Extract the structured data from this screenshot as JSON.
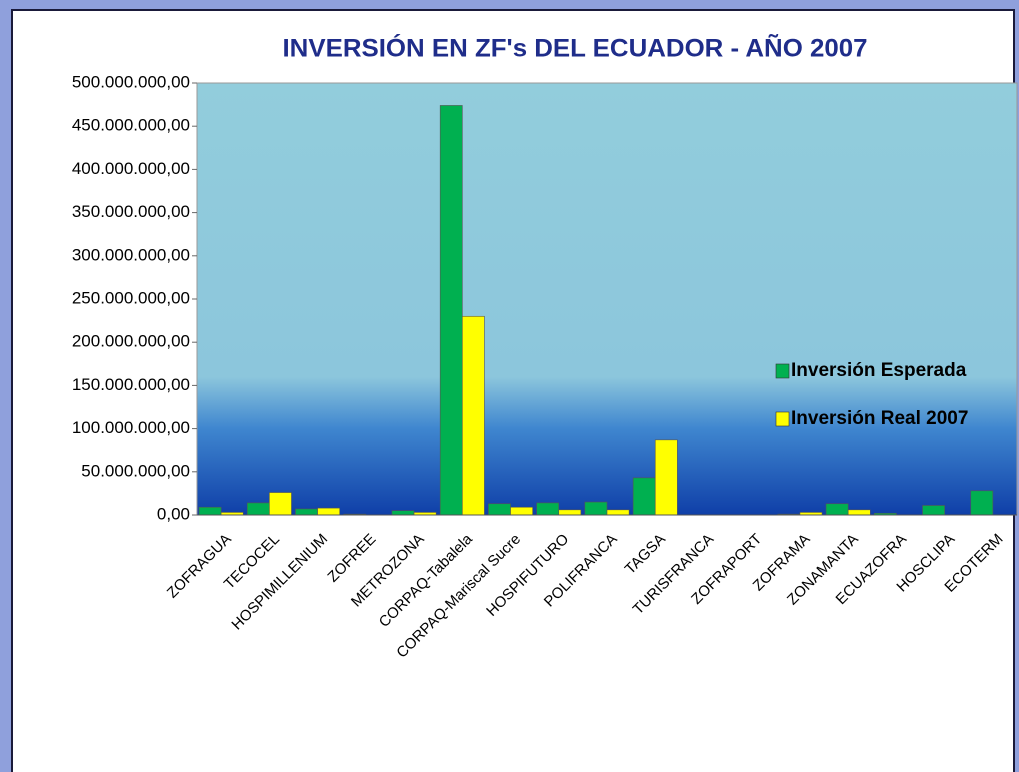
{
  "chart_data": {
    "type": "bar",
    "title": "INVERSIÓN EN ZF's DEL ECUADOR - AÑO 2007",
    "categories": [
      "ZOFRAGUA",
      "TECOCEL",
      "HOSPIMILLENIUM",
      "ZOFREE",
      "METROZONA",
      "CORPAQ-Tabalela",
      "CORPAQ-Mariscal Sucre",
      "HOSPIFUTURO",
      "POLIFRANCA",
      "TAGSA",
      "TURISFRANCA",
      "ZOFRAPORT",
      "ZOFRAMA",
      "ZONAMANTA",
      "ECUAZOFRA",
      "HOSCLIPA",
      "ECOTERM"
    ],
    "series": [
      {
        "name": "Inversión Esperada",
        "color": "#00b050",
        "values": [
          9000000,
          14000000,
          7000000,
          1000000,
          5000000,
          474000000,
          13000000,
          14000000,
          15000000,
          43000000,
          0,
          0,
          1000000,
          13000000,
          2000000,
          11000000,
          28000000
        ]
      },
      {
        "name": "Inversión Real 2007",
        "color": "#ffff00",
        "values": [
          3000000,
          26000000,
          8000000,
          0,
          3000000,
          230000000,
          9000000,
          6000000,
          6000000,
          87000000,
          0,
          0,
          3000000,
          6000000,
          0,
          0,
          0
        ]
      }
    ],
    "ylim": [
      0,
      500000000
    ],
    "yticks": [
      {
        "value": 0,
        "label": "0,00"
      },
      {
        "value": 50000000,
        "label": "50.000.000,00"
      },
      {
        "value": 100000000,
        "label": "100.000.000,00"
      },
      {
        "value": 150000000,
        "label": "150.000.000,00"
      },
      {
        "value": 200000000,
        "label": "200.000.000,00"
      },
      {
        "value": 250000000,
        "label": "250.000.000,00"
      },
      {
        "value": 300000000,
        "label": "300.000.000,00"
      },
      {
        "value": 350000000,
        "label": "350.000.000,00"
      },
      {
        "value": 400000000,
        "label": "400.000.000,00"
      },
      {
        "value": 450000000,
        "label": "450.000.000,00"
      },
      {
        "value": 500000000,
        "label": "500.000.000,00"
      }
    ],
    "legend": "right"
  }
}
